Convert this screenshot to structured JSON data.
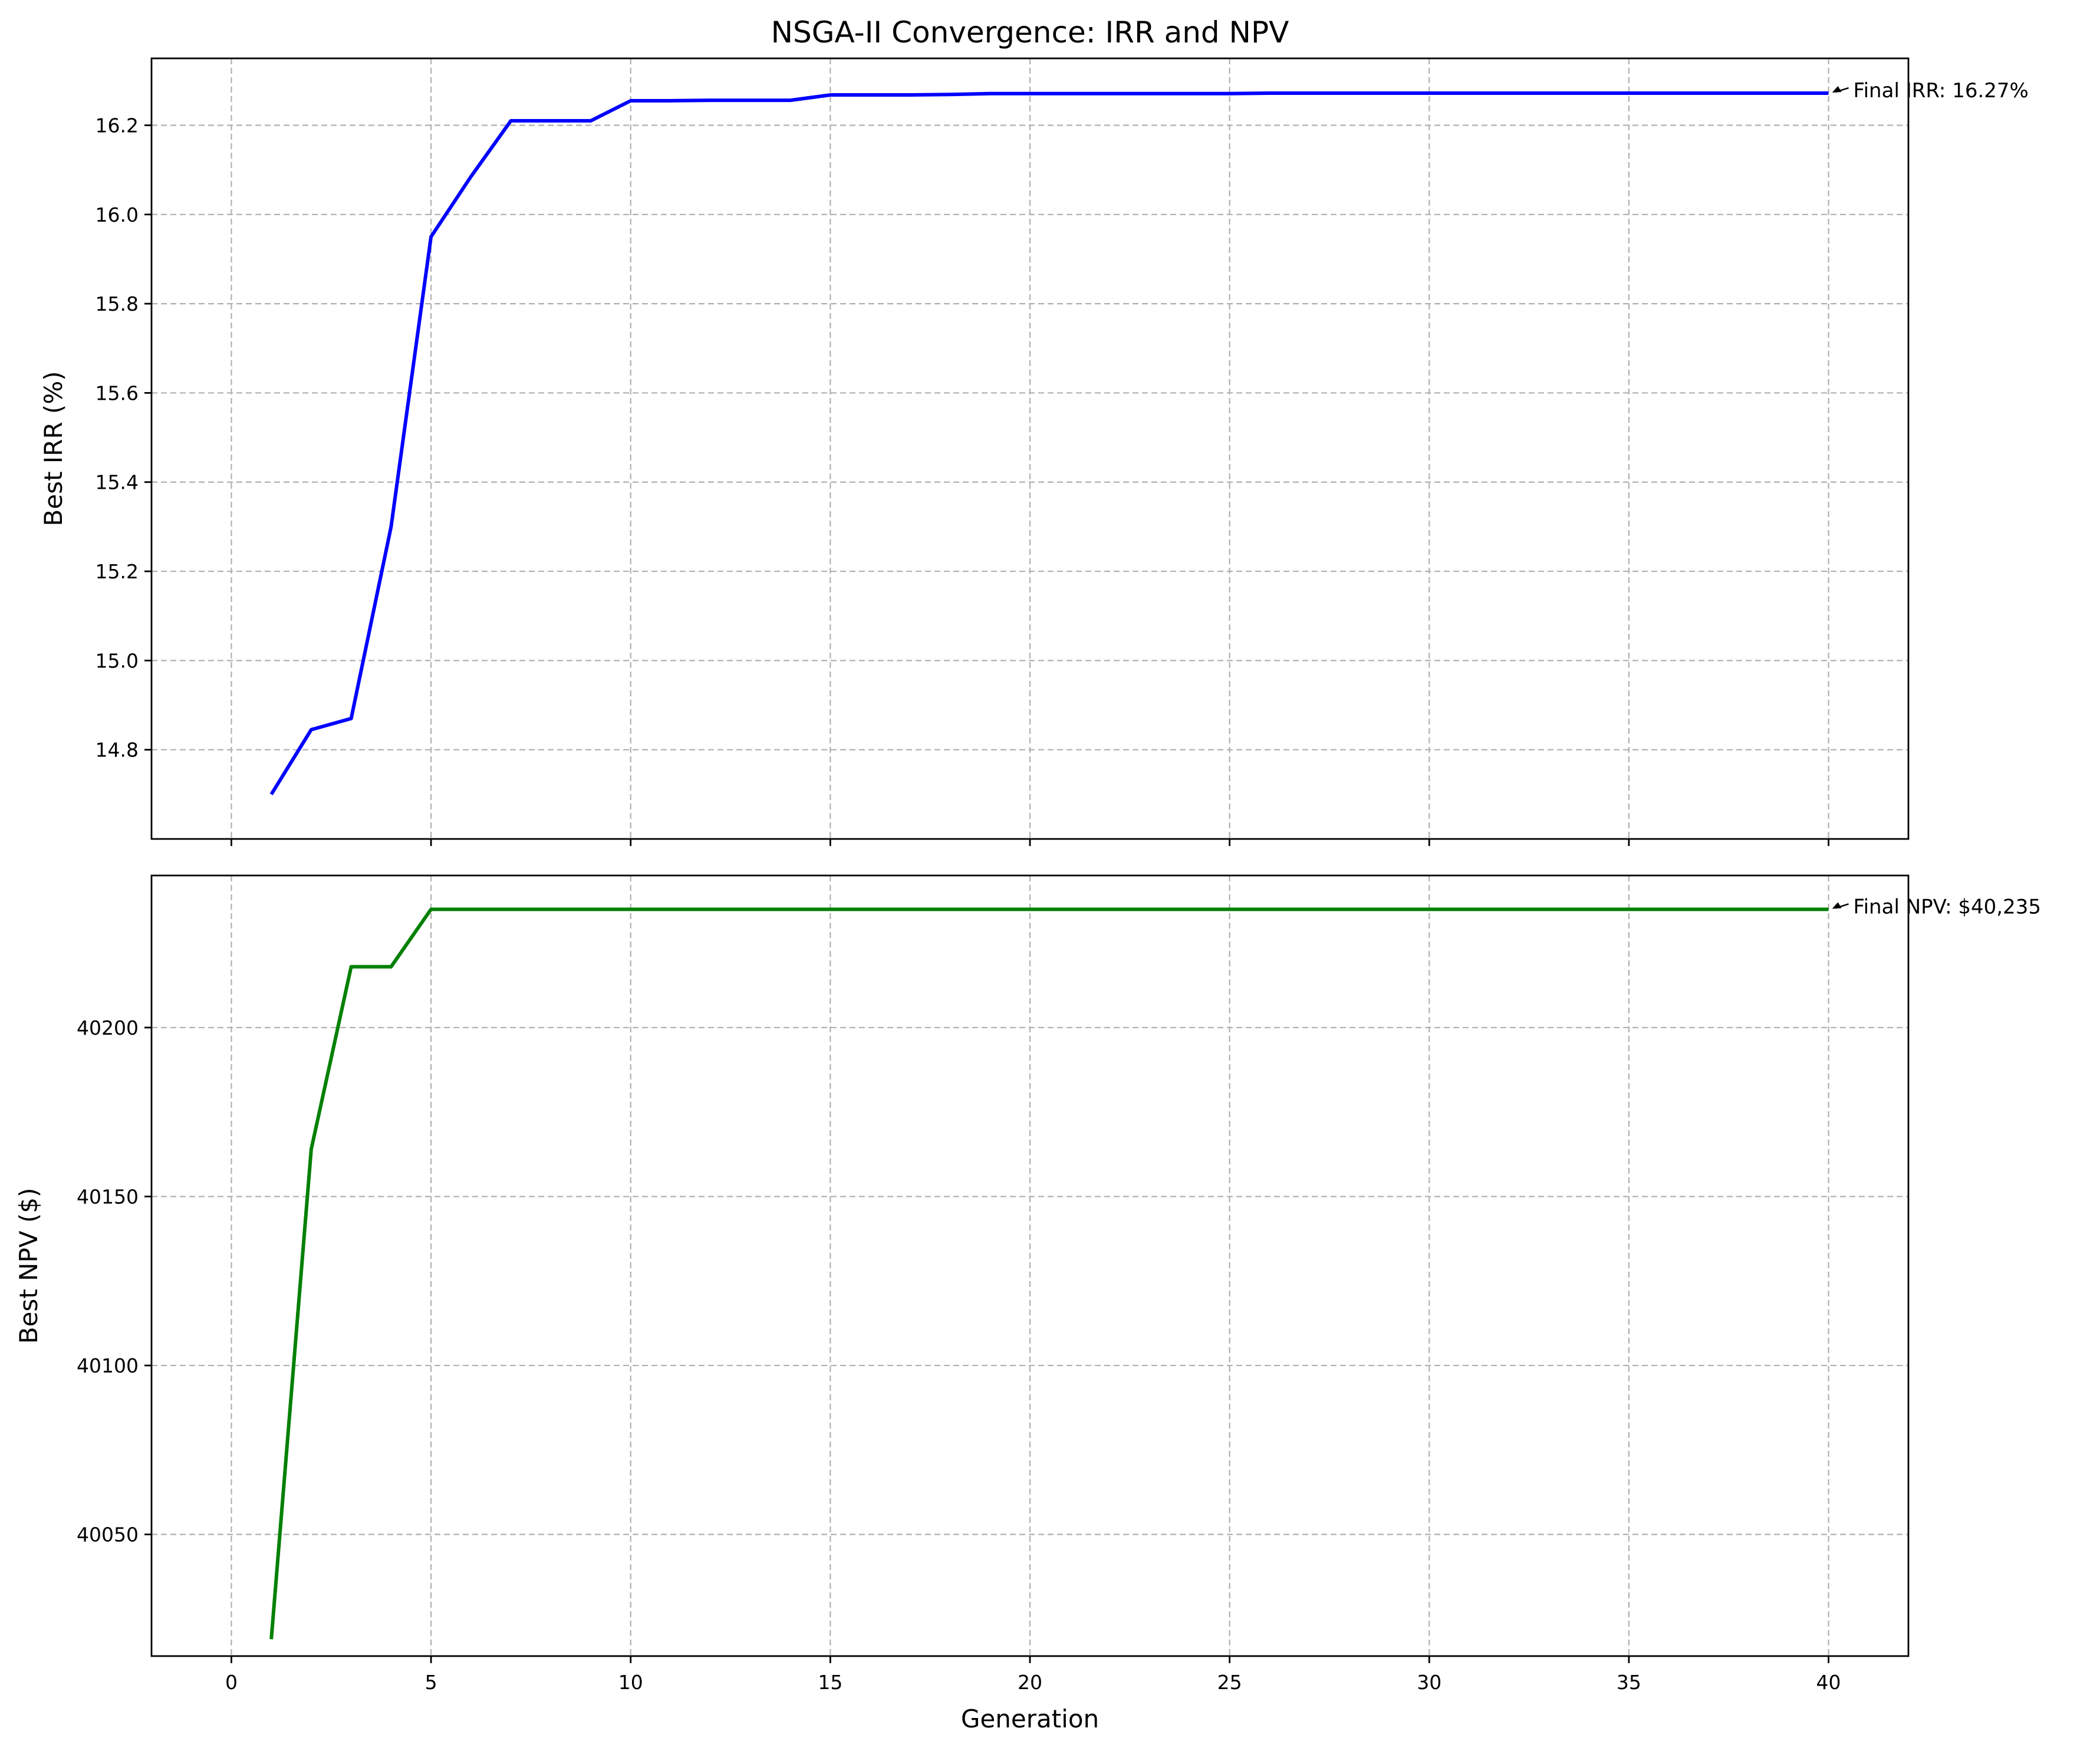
{
  "chart_data": {
    "title": "NSGA-II Convergence: IRR and NPV",
    "type": "line",
    "xlabel": "Generation",
    "xlim": [
      -2,
      42
    ],
    "xticks": [
      0,
      5,
      10,
      15,
      20,
      25,
      30,
      35,
      40
    ],
    "grid": true,
    "subplots": [
      {
        "ylabel": "Best IRR (%)",
        "ylim": [
          14.6,
          16.35
        ],
        "yticks": [
          14.8,
          15.0,
          15.2,
          15.4,
          15.6,
          15.8,
          16.0,
          16.2
        ],
        "tick_format": 1,
        "show_x_tick_labels": false,
        "color": "#0000ff",
        "x": [
          1,
          2,
          3,
          4,
          5,
          6,
          7,
          8,
          9,
          10,
          11,
          12,
          13,
          14,
          15,
          16,
          17,
          18,
          19,
          20,
          21,
          22,
          23,
          24,
          25,
          26,
          27,
          28,
          29,
          30,
          31,
          32,
          33,
          34,
          35,
          36,
          37,
          38,
          39,
          40
        ],
        "y": [
          14.7,
          14.845,
          14.87,
          15.3,
          15.95,
          16.085,
          16.21,
          16.21,
          16.21,
          16.255,
          16.255,
          16.256,
          16.256,
          16.256,
          16.268,
          16.268,
          16.268,
          16.269,
          16.271,
          16.271,
          16.271,
          16.271,
          16.271,
          16.271,
          16.271,
          16.272,
          16.272,
          16.272,
          16.272,
          16.272,
          16.272,
          16.272,
          16.272,
          16.272,
          16.272,
          16.272,
          16.272,
          16.272,
          16.272,
          16.272
        ],
        "annotation": "Final IRR: 16.27%"
      },
      {
        "ylabel": "Best NPV ($)",
        "ylim": [
          40014,
          40245
        ],
        "yticks": [
          40050,
          40100,
          40150,
          40200
        ],
        "tick_format": 0,
        "show_x_tick_labels": true,
        "color": "#008000",
        "x": [
          1,
          2,
          3,
          4,
          5,
          6,
          7,
          8,
          9,
          10,
          11,
          12,
          13,
          14,
          15,
          16,
          17,
          18,
          19,
          20,
          21,
          22,
          23,
          24,
          25,
          26,
          27,
          28,
          29,
          30,
          31,
          32,
          33,
          34,
          35,
          36,
          37,
          38,
          39,
          40
        ],
        "y": [
          40019,
          40164,
          40218,
          40218,
          40235,
          40235,
          40235,
          40235,
          40235,
          40235,
          40235,
          40235,
          40235,
          40235,
          40235,
          40235,
          40235,
          40235,
          40235,
          40235,
          40235,
          40235,
          40235,
          40235,
          40235,
          40235,
          40235,
          40235,
          40235,
          40235,
          40235,
          40235,
          40235,
          40235,
          40235,
          40235,
          40235,
          40235,
          40235,
          40235
        ],
        "annotation": "Final NPV: $40,235"
      }
    ]
  }
}
